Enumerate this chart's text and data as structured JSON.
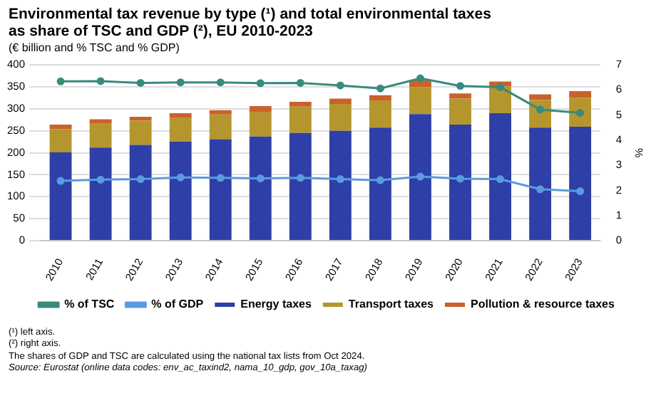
{
  "chart_data": {
    "type": "bar",
    "title": "Environmental tax revenue by type (¹) and total environmental taxes\nas share of TSC and GDP (²),  EU 2010-2023",
    "subtitle": "(€ billion  and % TSC and % GDP)",
    "y2label": "%",
    "categories": [
      "2010",
      "2011",
      "2012",
      "2013",
      "2014",
      "2015",
      "2016",
      "2017",
      "2018",
      "2019",
      "2020",
      "2021",
      "2022",
      "2023"
    ],
    "stacked": true,
    "grid": "y",
    "legend": "bottom",
    "marker": "circle",
    "ylim": [
      0,
      400
    ],
    "yticks": [
      0,
      50,
      100,
      150,
      200,
      250,
      300,
      350,
      400
    ],
    "y2lim": [
      0,
      7
    ],
    "y2ticks": [
      0,
      1,
      2,
      3,
      4,
      5,
      6,
      7
    ],
    "series": [
      {
        "name": "Energy taxes",
        "color": "#2e3fa8",
        "values": [
          201,
          212,
          218,
          225,
          231,
          237,
          245,
          250,
          257,
          288,
          264,
          290,
          257,
          259
        ]
      },
      {
        "name": "Transport taxes",
        "color": "#b5962e",
        "values": [
          53,
          54,
          55,
          54,
          56,
          55,
          60,
          61,
          62,
          61,
          59,
          61,
          63,
          66
        ]
      },
      {
        "name": "Pollution & resource taxes",
        "color": "#c9622a",
        "values": [
          10,
          10,
          9,
          11,
          10,
          14,
          11,
          12,
          12,
          16,
          12,
          11,
          13,
          15
        ]
      },
      {
        "name": "% of TSC",
        "type": "line",
        "axis": "y2",
        "color": "#3a8a7e",
        "values": [
          6.34,
          6.35,
          6.28,
          6.3,
          6.3,
          6.27,
          6.28,
          6.18,
          6.06,
          6.46,
          6.16,
          6.11,
          5.22,
          5.09
        ]
      },
      {
        "name": "% of GDP",
        "type": "line",
        "axis": "y2",
        "color": "#5b9be0",
        "values": [
          2.38,
          2.43,
          2.45,
          2.52,
          2.5,
          2.48,
          2.5,
          2.45,
          2.41,
          2.55,
          2.47,
          2.45,
          2.05,
          1.97
        ]
      }
    ],
    "annotations": [
      "(¹) left axis.",
      "(²) right axis.",
      "The shares of GDP and TSC are calculated using the national tax lists from Oct 2024.",
      "Source: Eurostat (online data codes: env_ac_taxind2, nama_10_gdp, gov_10a_taxag)"
    ]
  }
}
